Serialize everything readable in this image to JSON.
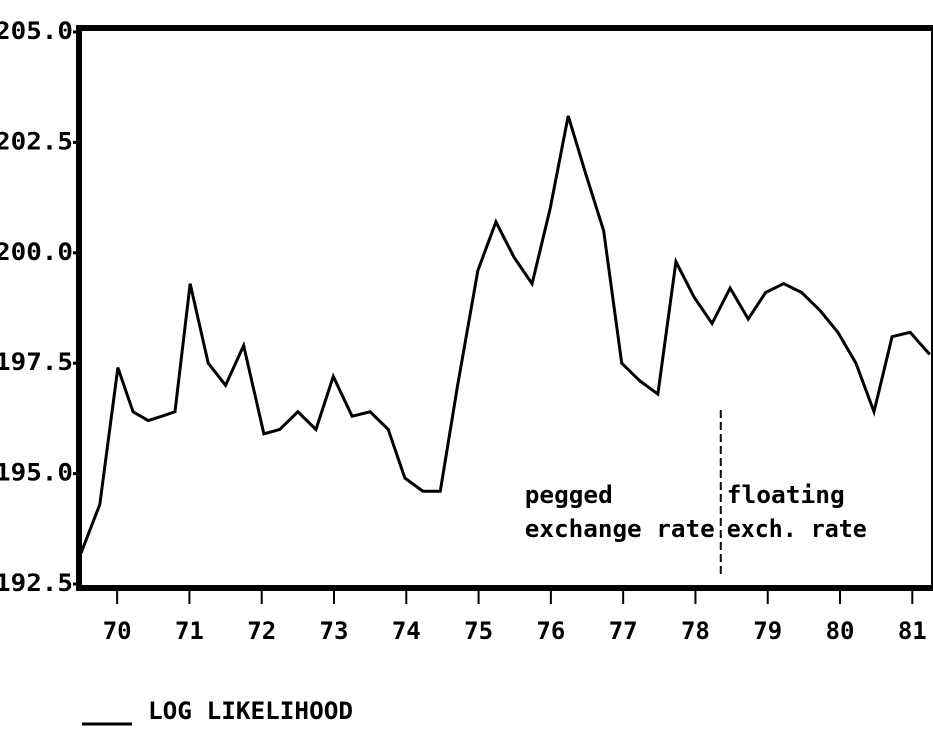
{
  "chart_data": {
    "type": "line",
    "x": [
      70.0,
      70.26,
      70.51,
      70.72,
      70.93,
      71.12,
      71.3,
      71.51,
      71.76,
      72.0,
      72.25,
      72.53,
      72.75,
      73.0,
      73.25,
      73.49,
      73.75,
      74.0,
      74.25,
      74.48,
      74.73,
      74.97,
      75.21,
      75.49,
      75.74,
      75.99,
      76.24,
      76.49,
      76.74,
      76.98,
      77.23,
      77.48,
      77.73,
      77.98,
      78.23,
      78.48,
      78.73,
      78.98,
      79.23,
      79.47,
      79.72,
      79.97,
      80.22,
      80.47,
      80.72,
      80.97,
      81.22,
      81.47,
      81.74
    ],
    "series": [
      {
        "name": "LOG LIKELIHOOD",
        "color": "#000000",
        "values": [
          193.2,
          194.3,
          197.4,
          196.4,
          196.2,
          196.3,
          196.4,
          199.3,
          197.5,
          197.0,
          197.9,
          195.9,
          196.0,
          196.4,
          196.0,
          197.2,
          196.3,
          196.4,
          196.0,
          194.9,
          194.6,
          194.6,
          197.0,
          199.6,
          200.7,
          199.9,
          199.3,
          201.0,
          203.1,
          201.8,
          200.5,
          197.5,
          197.1,
          196.8,
          199.8,
          199.0,
          198.4,
          199.2,
          198.5,
          199.1,
          199.3,
          199.1,
          198.7,
          198.2,
          197.5,
          196.4,
          198.1,
          198.2,
          197.7
        ]
      }
    ],
    "xlim": [
      70.0,
      81.8
    ],
    "xticks": [
      {
        "value": 70.5,
        "label": "70"
      },
      {
        "value": 71.5,
        "label": "71"
      },
      {
        "value": 72.5,
        "label": "72"
      },
      {
        "value": 73.5,
        "label": "73"
      },
      {
        "value": 74.5,
        "label": "74"
      },
      {
        "value": 75.5,
        "label": "75"
      },
      {
        "value": 76.5,
        "label": "76"
      },
      {
        "value": 77.5,
        "label": "77"
      },
      {
        "value": 78.5,
        "label": "78"
      },
      {
        "value": 79.5,
        "label": "79"
      },
      {
        "value": 80.5,
        "label": "80"
      },
      {
        "value": 81.5,
        "label": "81"
      }
    ],
    "ylim": [
      192.5,
      205.0
    ],
    "yticks": [
      {
        "value": 192.5,
        "label": "192.5"
      },
      {
        "value": 195.0,
        "label": "195.0"
      },
      {
        "value": 197.5,
        "label": "197.5"
      },
      {
        "value": 200.0,
        "label": "200.0"
      },
      {
        "value": 202.5,
        "label": "202.5"
      },
      {
        "value": 205.0,
        "label": "205.0"
      }
    ],
    "divider_x": 78.85,
    "annotations_left": [
      "pegged",
      "exchange rate"
    ],
    "annotations_right": [
      "floating",
      "exch. rate"
    ]
  }
}
